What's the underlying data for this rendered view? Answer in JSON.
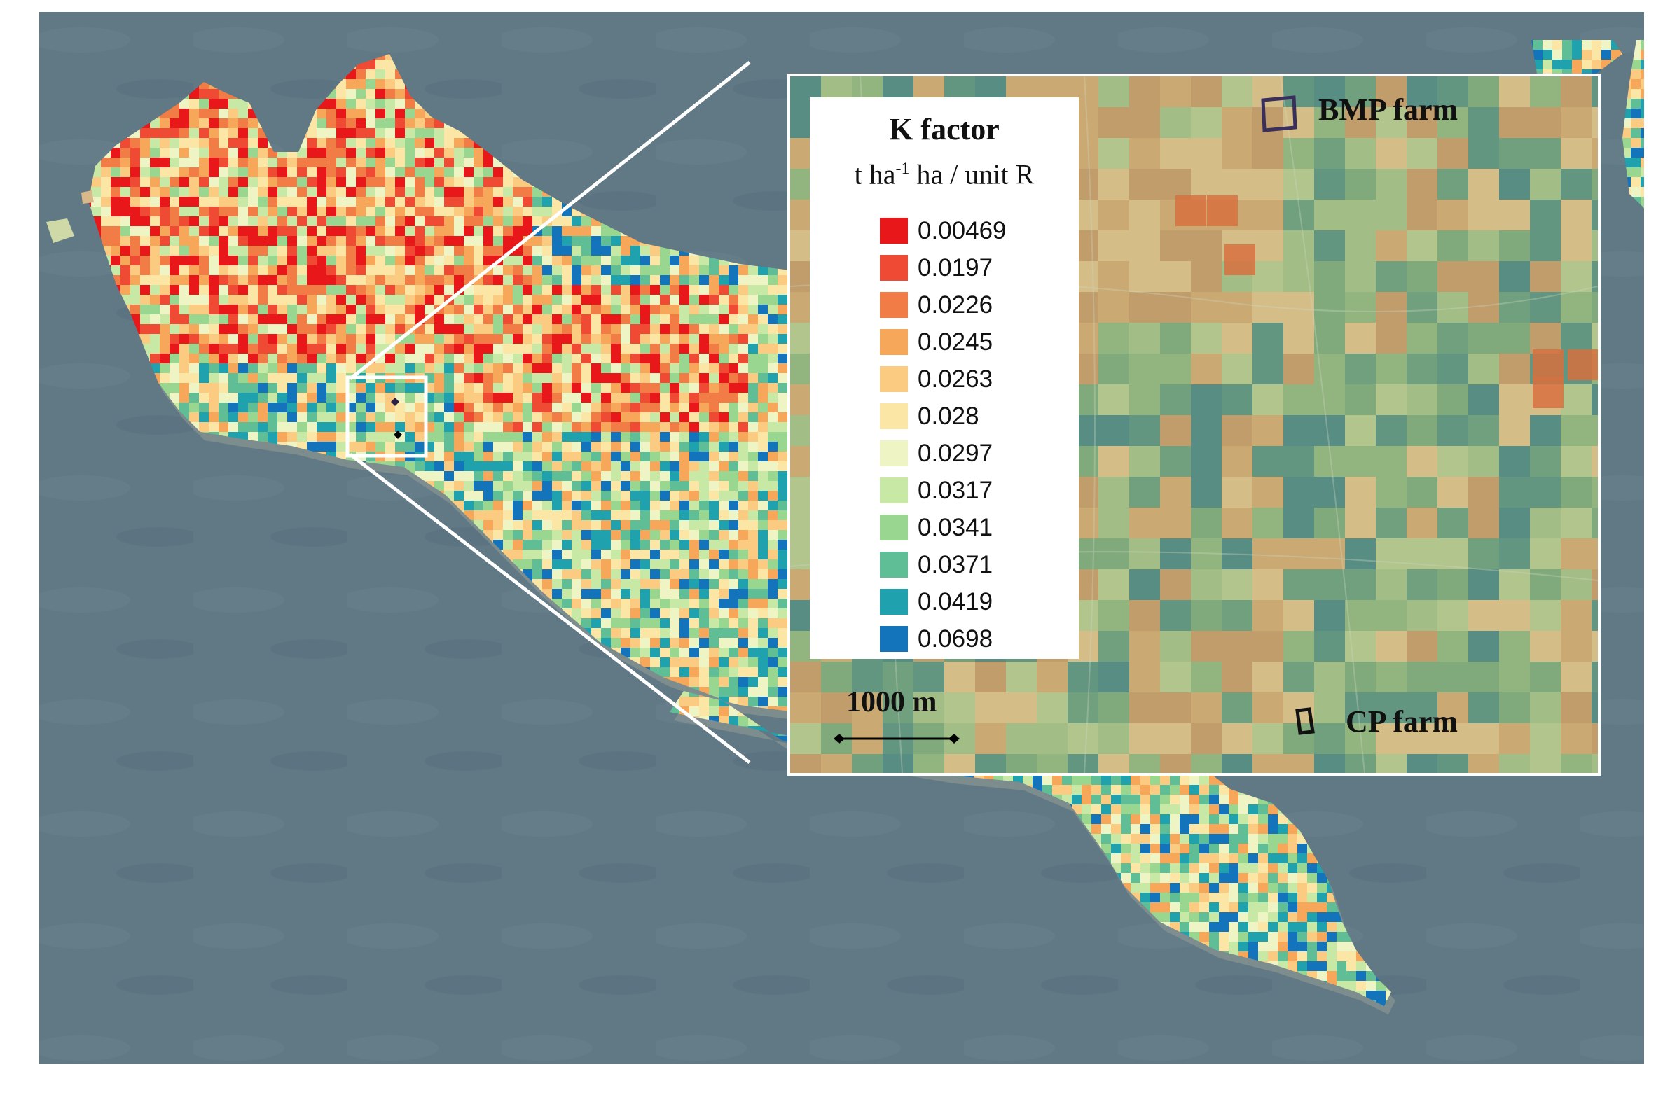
{
  "legend": {
    "title": "K factor",
    "unit_main": "t ha",
    "unit_sup": "-1",
    "unit_rest": " ha / unit R",
    "items": [
      {
        "label": "0.00469",
        "color": "#e8171a"
      },
      {
        "label": "0.0197",
        "color": "#ef4a33"
      },
      {
        "label": "0.0226",
        "color": "#f27c46"
      },
      {
        "label": "0.0245",
        "color": "#f7a75a"
      },
      {
        "label": "0.0263",
        "color": "#fbcb82"
      },
      {
        "label": "0.028",
        "color": "#fbe6a6"
      },
      {
        "label": "0.0297",
        "color": "#eef4c4"
      },
      {
        "label": "0.0317",
        "color": "#c8e8a6"
      },
      {
        "label": "0.0341",
        "color": "#99d791"
      },
      {
        "label": "0.0371",
        "color": "#5fbe96"
      },
      {
        "label": "0.0419",
        "color": "#1fa2ad"
      },
      {
        "label": "0.0698",
        "color": "#1374bb"
      }
    ]
  },
  "farms": {
    "bmp": "BMP farm",
    "cp": "CP farm"
  },
  "scale_bar": "1000 m",
  "colors": {
    "sea": "#5f7584",
    "inset_border": "#ffffff",
    "farm_outline_bmp": "#3a2f5c",
    "farm_outline_cp": "#111111"
  }
}
